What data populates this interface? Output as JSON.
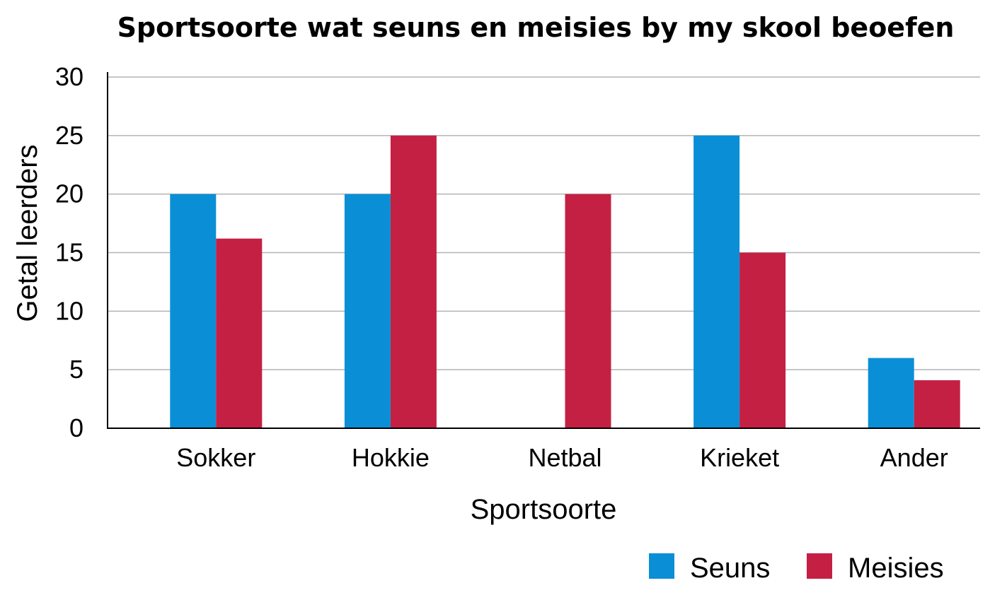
{
  "chart_data": {
    "type": "bar",
    "title": "Sportsoorte wat seuns en meisies by my skool beoefen",
    "xlabel": "Sportsoorte",
    "ylabel": "Getal leerders",
    "categories": [
      "Sokker",
      "Hokkie",
      "Netbal",
      "Krieket",
      "Ander"
    ],
    "series": [
      {
        "name": "Seuns",
        "color": "#0a8fd6",
        "values": [
          20,
          20,
          0,
          25,
          6
        ]
      },
      {
        "name": "Meisies",
        "color": "#c42043",
        "values": [
          16.2,
          25,
          20,
          15,
          4.1
        ]
      }
    ],
    "ylim": [
      0,
      30
    ],
    "yticks": [
      0,
      5,
      10,
      15,
      20,
      25,
      30
    ],
    "grid": true,
    "legend_position": "bottom-right"
  }
}
